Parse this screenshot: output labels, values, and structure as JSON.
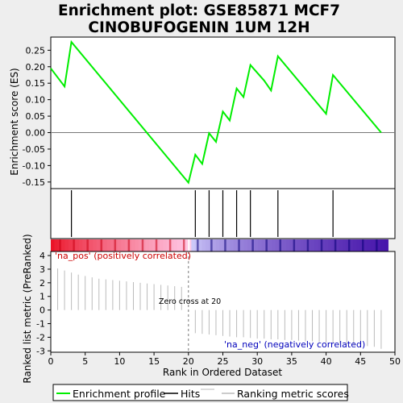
{
  "title_line1": "Enrichment plot: GSE85871 MCF7",
  "title_line2": "CINOBUFOGENIN 1UM 12H",
  "chart_data": {
    "type": "line",
    "xlabel": "Rank in Ordered Dataset",
    "top_ylabel": "Enrichment score (ES)",
    "bottom_ylabel": "Ranked list metric (PreRanked)",
    "xlim": [
      0,
      50
    ],
    "x_ticks": [
      0,
      5,
      10,
      15,
      20,
      25,
      30,
      35,
      40,
      45,
      50
    ],
    "es_ylim": [
      -0.17,
      0.29
    ],
    "es_ticks": [
      -0.15,
      -0.1,
      -0.05,
      0.0,
      0.05,
      0.1,
      0.15,
      0.2,
      0.25
    ],
    "es_tick_labels": [
      "-0.15",
      "-0.10",
      "-0.05",
      "0.00",
      "0.05",
      "0.10",
      "0.15",
      "0.20",
      "0.25"
    ],
    "metric_ylim": [
      -3.1,
      4.3
    ],
    "metric_ticks": [
      -3,
      -2,
      -1,
      0,
      1,
      2,
      3,
      4
    ],
    "enrichment_profile": {
      "x": [
        0,
        2,
        3,
        20,
        21,
        22,
        23,
        24,
        25,
        26,
        27,
        28,
        29,
        31,
        32,
        33,
        40,
        41,
        48
      ],
      "y": [
        0.195,
        0.14,
        0.275,
        -0.152,
        -0.067,
        -0.095,
        -0.002,
        -0.028,
        0.064,
        0.037,
        0.134,
        0.108,
        0.205,
        0.158,
        0.128,
        0.232,
        0.057,
        0.175,
        0.0
      ]
    },
    "hits": [
      3,
      21,
      23,
      25,
      27,
      29,
      33,
      41
    ],
    "ranking_metric": {
      "x": [
        1,
        2,
        3,
        4,
        5,
        6,
        7,
        8,
        9,
        10,
        11,
        12,
        13,
        14,
        15,
        16,
        17,
        18,
        19,
        20,
        21,
        22,
        23,
        24,
        25,
        26,
        27,
        28,
        29,
        30,
        31,
        32,
        33,
        34,
        35,
        36,
        37,
        38,
        39,
        40,
        41,
        42,
        43,
        44,
        45,
        46,
        47,
        48
      ],
      "y": [
        3.05,
        2.9,
        2.75,
        2.6,
        2.5,
        2.4,
        2.3,
        2.25,
        2.2,
        2.15,
        2.1,
        2.05,
        2.0,
        1.95,
        1.9,
        1.85,
        1.8,
        1.75,
        1.7,
        -0.05,
        -1.7,
        -1.75,
        -1.8,
        -1.85,
        -1.9,
        -1.95,
        -2.0,
        -2.0,
        -2.05,
        -2.1,
        -2.1,
        -2.15,
        -2.15,
        -2.2,
        -2.2,
        -2.25,
        -2.3,
        -2.3,
        -2.35,
        -2.4,
        -2.4,
        -2.45,
        -2.5,
        -2.55,
        -2.6,
        -2.65,
        -2.7,
        -2.85
      ]
    },
    "zero_cross": 20,
    "zero_cross_label": "Zero cross at 20",
    "pos_label": "'na_pos' (positively correlated)",
    "neg_label": "'na_neg' (negatively correlated)",
    "legend": [
      "Enrichment profile",
      "Hits",
      "Ranking metric scores"
    ],
    "colors": {
      "profile": "#00ee00",
      "hits": "#000000",
      "metric": "#bbbbbb",
      "pos": "#ff0000",
      "neg": "#0000ee"
    }
  }
}
